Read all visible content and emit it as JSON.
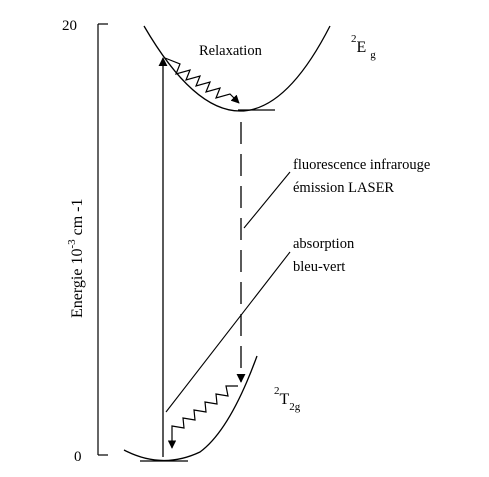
{
  "axis": {
    "label_base": "Energie 10",
    "label_exponent": "-3",
    "label_unit": " cm -1",
    "tick_top": "20",
    "tick_bottom": "0"
  },
  "states": {
    "excited": {
      "sup": "2",
      "main": "E",
      "sub": "g"
    },
    "ground": {
      "sup": "2",
      "main": "T",
      "sub": "2g"
    }
  },
  "annotations": {
    "relaxation": "Relaxation",
    "fluorescence_line1": "fluorescence infrarouge",
    "fluorescence_line2": "émission LASER",
    "absorption_line1": "absorption",
    "absorption_line2": "bleu-vert"
  }
}
